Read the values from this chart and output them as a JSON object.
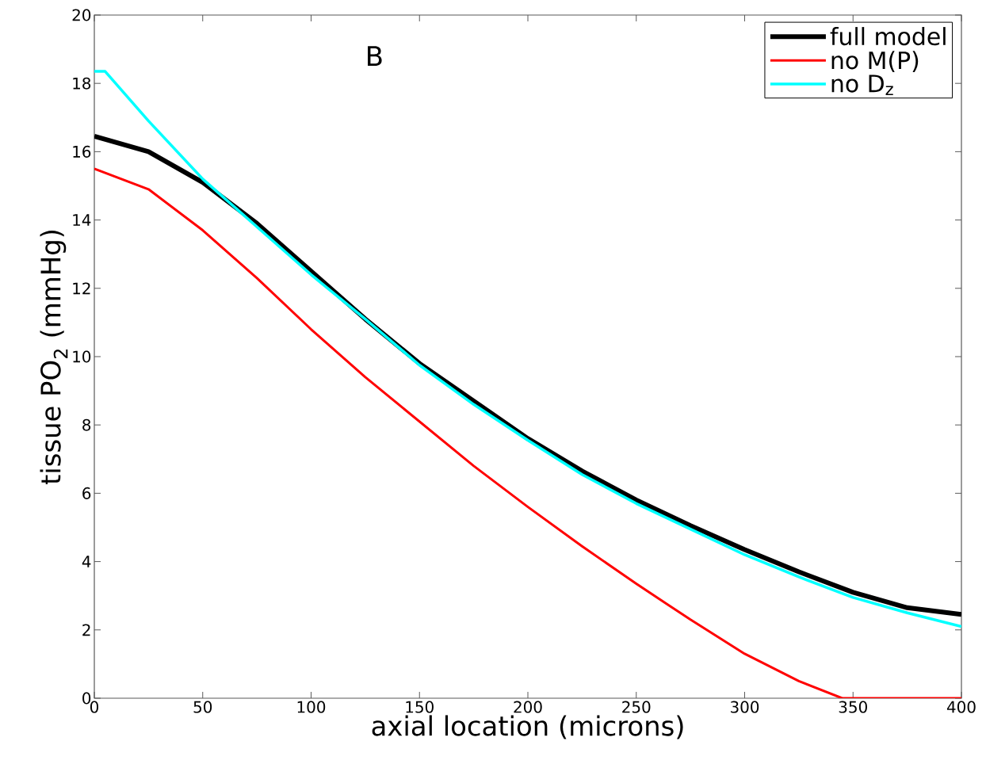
{
  "chart_data": {
    "type": "line",
    "xlabel": "axial location (microns)",
    "ylabel": "tissue PO$_{2}$ (mmHg)",
    "annotations": [
      "B"
    ],
    "xlim": [
      0,
      400
    ],
    "ylim": [
      0,
      20
    ],
    "xticks": [
      0,
      50,
      100,
      150,
      200,
      250,
      300,
      350,
      400
    ],
    "yticks": [
      0,
      2,
      4,
      6,
      8,
      10,
      12,
      14,
      16,
      18,
      20
    ],
    "grid": false,
    "legend": "top right",
    "line_style": "solid",
    "marker": "none",
    "series": [
      {
        "name": "full model",
        "color": "#000000",
        "x": [
          0,
          25,
          50,
          75,
          100,
          125,
          150,
          175,
          200,
          225,
          250,
          275,
          300,
          325,
          350,
          375,
          400
        ],
        "values": [
          16.45,
          16.0,
          15.1,
          13.9,
          12.5,
          11.1,
          9.8,
          8.7,
          7.6,
          6.65,
          5.8,
          5.05,
          4.35,
          3.7,
          3.1,
          2.65,
          2.45
        ]
      },
      {
        "name": "no M(P)",
        "color": "#ff0000",
        "x": [
          0,
          25,
          50,
          75,
          100,
          125,
          150,
          175,
          200,
          225,
          250,
          275,
          300,
          325,
          345,
          400
        ],
        "values": [
          15.5,
          14.9,
          13.7,
          12.3,
          10.8,
          9.4,
          8.1,
          6.8,
          5.6,
          4.45,
          3.35,
          2.3,
          1.3,
          0.5,
          0,
          0
        ]
      },
      {
        "name": "no D$_{z}$",
        "color": "#00ffff",
        "x": [
          0,
          5,
          25,
          50,
          75,
          100,
          125,
          150,
          175,
          200,
          225,
          250,
          275,
          300,
          325,
          350,
          375,
          400
        ],
        "values": [
          18.35,
          18.35,
          16.9,
          15.2,
          13.8,
          12.4,
          11.1,
          9.75,
          8.6,
          7.55,
          6.55,
          5.7,
          4.95,
          4.2,
          3.55,
          2.95,
          2.5,
          2.1
        ]
      }
    ]
  }
}
